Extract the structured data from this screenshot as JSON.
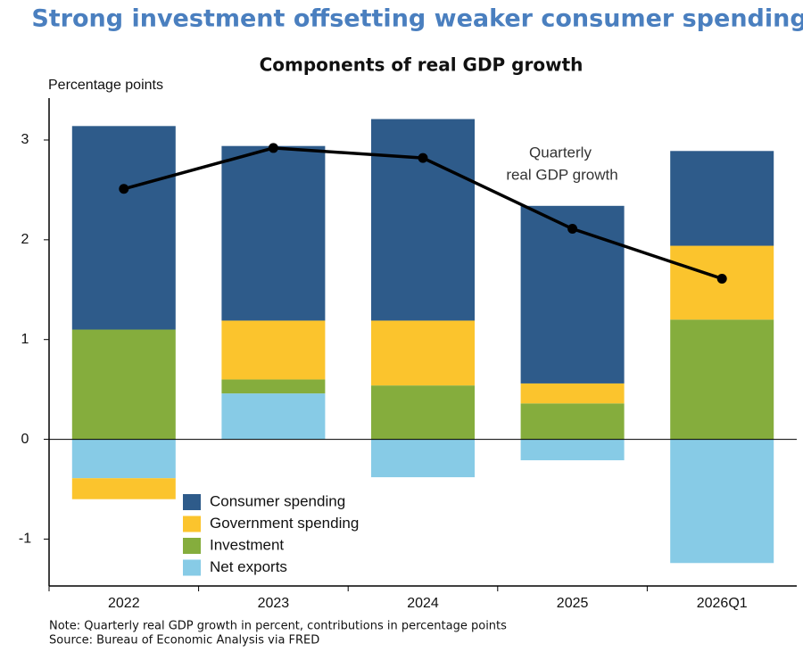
{
  "header": {
    "title": "Strong investment offsetting weaker consumer spending"
  },
  "chart_data": {
    "type": "bar",
    "stacked": true,
    "title": "Components of real GDP growth",
    "y_label": "Percentage points",
    "categories": [
      "2022",
      "2023",
      "2024",
      "2025",
      "2026Q1"
    ],
    "series": [
      {
        "name": "Consumer spending",
        "color": "#2e5b8a",
        "values": [
          2.04,
          1.75,
          2.02,
          1.78,
          0.95
        ]
      },
      {
        "name": "Government spending",
        "color": "#fbc42d",
        "values": [
          -0.21,
          0.59,
          0.65,
          0.2,
          0.74
        ]
      },
      {
        "name": "Investment",
        "color": "#85ad3d",
        "values": [
          1.1,
          0.14,
          0.54,
          0.36,
          1.2
        ]
      },
      {
        "name": "Net exports",
        "color": "#87cbe6",
        "values": [
          -0.39,
          0.46,
          -0.38,
          -0.21,
          -1.24
        ]
      }
    ],
    "line": {
      "color": "#000000",
      "values": [
        2.51,
        2.92,
        2.82,
        2.11,
        1.61
      ]
    },
    "annotation": [
      "Quarterly",
      "real GDP growth"
    ],
    "ylim": [
      -1.47,
      3.42
    ],
    "yticks": [
      -1,
      0,
      1,
      2,
      3
    ],
    "notes": [
      "Note: Quarterly real GDP growth in percent, contributions in percentage points",
      "Source: Bureau of Economic Analysis via FRED"
    ]
  }
}
